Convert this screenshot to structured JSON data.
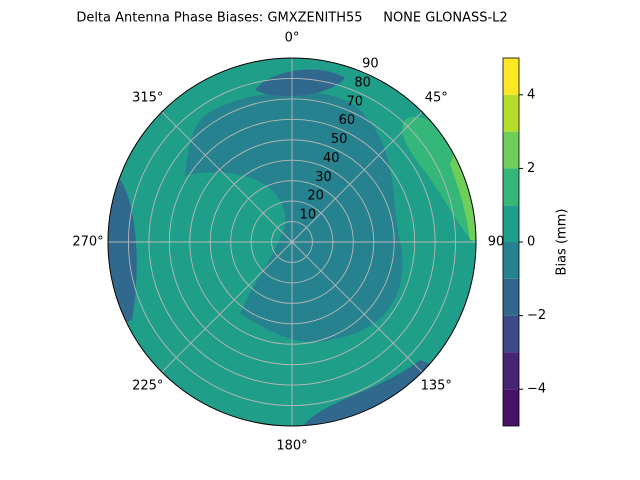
{
  "chart_data": {
    "type": "polar-contour",
    "title": "Delta Antenna Phase Biases: GMXZENITH55     NONE GLONASS-L2",
    "theta_ticks": [
      {
        "value": 0,
        "label": "0°"
      },
      {
        "value": 45,
        "label": "45°"
      },
      90,
      {
        "value": 135,
        "label": "135°"
      },
      {
        "value": 180,
        "label": "180°"
      },
      {
        "value": 225,
        "label": "225°"
      },
      {
        "value": 270,
        "label": "270°"
      },
      {
        "value": 315,
        "label": "315°"
      }
    ],
    "rlim": [
      0,
      90
    ],
    "rticks": [
      10,
      20,
      30,
      40,
      50,
      60,
      70,
      80,
      90
    ],
    "grid": true,
    "colorbar": {
      "label": "Bias (mm)",
      "levels": [
        -5,
        -4,
        -3,
        -2,
        -1,
        0,
        1,
        2,
        3,
        4,
        5
      ],
      "colors": [
        "#471365",
        "#482475",
        "#3e4989",
        "#31688e",
        "#26828e",
        "#1f9e89",
        "#35b779",
        "#6ece58",
        "#b5de2b",
        "#fde725"
      ],
      "ticks": [
        {
          "value": -4,
          "label": "−4"
        },
        {
          "value": -2,
          "label": "−2"
        },
        0,
        2,
        4
      ]
    }
  }
}
